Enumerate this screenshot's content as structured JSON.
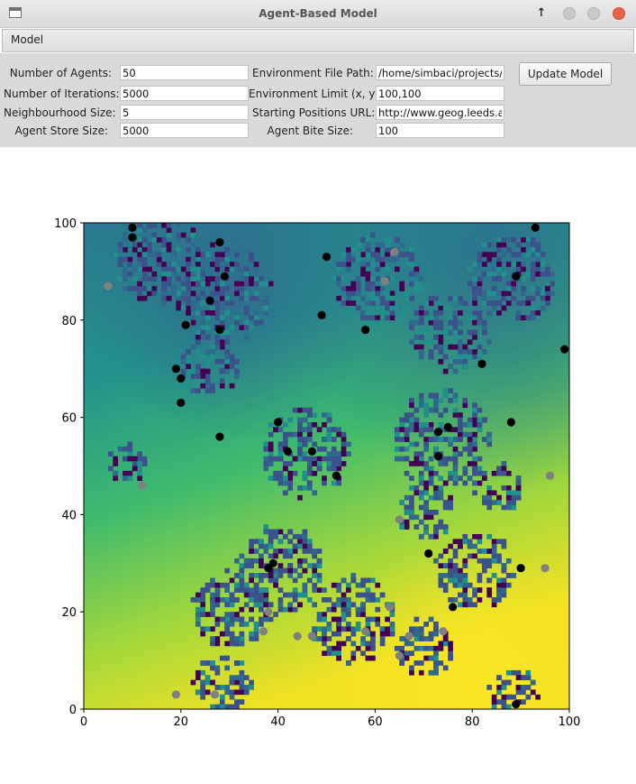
{
  "window": {
    "title": "Agent-Based Model"
  },
  "menu": {
    "items": [
      "Model"
    ]
  },
  "form": {
    "num_agents_label": "Number of Agents:",
    "num_agents": "50",
    "num_iterations_label": "Number of Iterations:",
    "num_iterations": "5000",
    "neighbourhood_label": "Neighbourhood Size:",
    "neighbourhood": "5",
    "store_label": "Agent Store Size:",
    "store": "5000",
    "env_path_label": "Environment File Path:",
    "env_path": "/home/simbaci/projects/le",
    "env_limit_label": "Environment Limit (x, y):",
    "env_limit": "100,100",
    "start_url_label": "Starting Positions URL:",
    "start_url": "http://www.geog.leeds.ac.",
    "bite_label": "Agent Bite Size:",
    "bite": "100",
    "update_button": "Update Model"
  },
  "chart_data": {
    "type": "scatter",
    "background": "heatmap",
    "xlim": [
      0,
      100
    ],
    "ylim": [
      0,
      100
    ],
    "xticks": [
      0,
      20,
      40,
      60,
      80,
      100
    ],
    "yticks": [
      0,
      20,
      40,
      60,
      80,
      100
    ],
    "colors": {
      "agent_active": "#000000",
      "agent_inactive": "#808080",
      "env_high": "#fde725",
      "env_mid": "#21908d",
      "env_low": "#440154"
    },
    "series": [
      {
        "color": "#000000",
        "points": [
          [
            10,
            99
          ],
          [
            10,
            97
          ],
          [
            28,
            96
          ],
          [
            93,
            99
          ],
          [
            50,
            93
          ],
          [
            29,
            89
          ],
          [
            89,
            89
          ],
          [
            26,
            84
          ],
          [
            21,
            79
          ],
          [
            28,
            78
          ],
          [
            49,
            81
          ],
          [
            58,
            78
          ],
          [
            99,
            74
          ],
          [
            82,
            71
          ],
          [
            19,
            70
          ],
          [
            20,
            68
          ],
          [
            20,
            63
          ],
          [
            40,
            59
          ],
          [
            88,
            59
          ],
          [
            73,
            57
          ],
          [
            75,
            58
          ],
          [
            28,
            56
          ],
          [
            42,
            53
          ],
          [
            47,
            53
          ],
          [
            73,
            52
          ],
          [
            52,
            48
          ],
          [
            71,
            32
          ],
          [
            39,
            30
          ],
          [
            38,
            29
          ],
          [
            90,
            29
          ],
          [
            76,
            21
          ],
          [
            89,
            1
          ]
        ]
      },
      {
        "color": "#808080",
        "points": [
          [
            5,
            87
          ],
          [
            64,
            94
          ],
          [
            62,
            88
          ],
          [
            12,
            46
          ],
          [
            96,
            48
          ],
          [
            65,
            39
          ],
          [
            95,
            29
          ],
          [
            38,
            20
          ],
          [
            63,
            21
          ],
          [
            37,
            16
          ],
          [
            44,
            15
          ],
          [
            47,
            15
          ],
          [
            58,
            16
          ],
          [
            67,
            15
          ],
          [
            74,
            16
          ],
          [
            65,
            11
          ],
          [
            27,
            3
          ],
          [
            19,
            3
          ]
        ]
      }
    ]
  }
}
